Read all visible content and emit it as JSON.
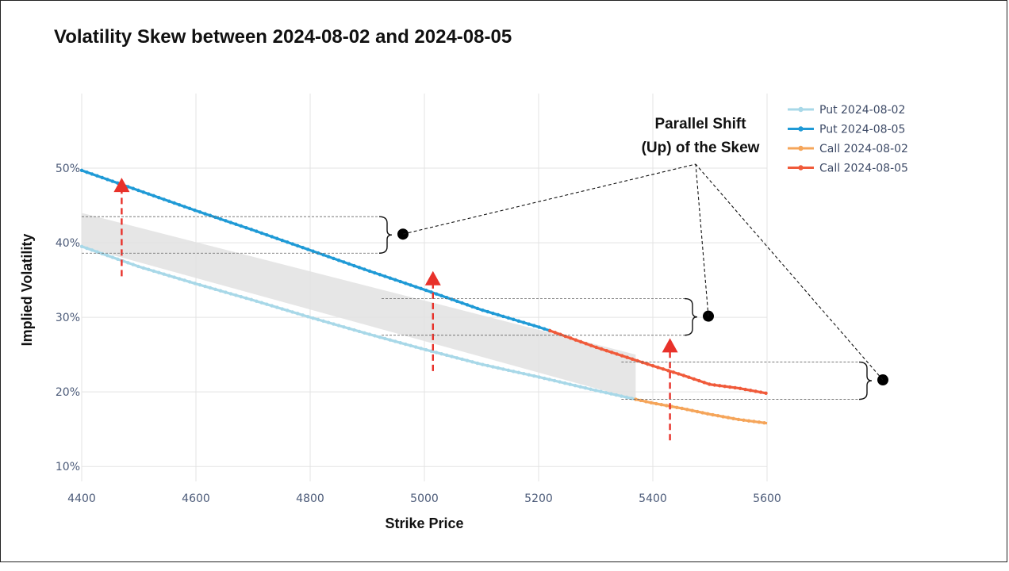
{
  "title": "Volatility Skew between 2024-08-02 and 2024-08-05",
  "chart_data": {
    "type": "line",
    "title": "Volatility Skew between 2024-08-02 and 2024-08-05",
    "xlabel": "Strike Price",
    "ylabel": "Implied Volatility",
    "xlim": [
      4400,
      5600
    ],
    "ylim": [
      8,
      60
    ],
    "x_ticks": [
      "4400",
      "4600",
      "4800",
      "5000",
      "5200",
      "5400",
      "5600"
    ],
    "y_ticks": [
      "10%",
      "20%",
      "30%",
      "40%",
      "50%"
    ],
    "grid": true,
    "legend_position": "top-right",
    "series": [
      {
        "name": "Put 2024-08-02",
        "color": "#a8d8e8",
        "x": [
          4400,
          4500,
          4600,
          4700,
          4800,
          4900,
          5000,
          5100,
          5200,
          5300,
          5370
        ],
        "y": [
          39.5,
          36.8,
          34.5,
          32.3,
          30.0,
          27.8,
          25.7,
          23.7,
          22.0,
          20.2,
          19.0
        ]
      },
      {
        "name": "Put 2024-08-05",
        "color": "#1f9ad6",
        "x": [
          4400,
          4500,
          4600,
          4700,
          4800,
          4900,
          5000,
          5100,
          5200,
          5220
        ],
        "y": [
          49.7,
          47.0,
          44.3,
          41.7,
          39.0,
          36.3,
          33.7,
          31.0,
          28.7,
          28.2
        ]
      },
      {
        "name": "Call 2024-08-02",
        "color": "#f5a55a",
        "x": [
          5370,
          5400,
          5450,
          5500,
          5550,
          5600
        ],
        "y": [
          19.0,
          18.5,
          17.8,
          17.0,
          16.3,
          15.8
        ]
      },
      {
        "name": "Call 2024-08-05",
        "color": "#f05a3a",
        "x": [
          5220,
          5300,
          5400,
          5450,
          5500,
          5550,
          5600
        ],
        "y": [
          28.2,
          26.0,
          23.5,
          22.3,
          21.0,
          20.5,
          19.8
        ]
      }
    ],
    "shaded_region": [
      {
        "x": 4400,
        "y_low": 39.5,
        "y_high": 44.0
      },
      {
        "x": 5370,
        "y_low": 19.0,
        "y_high": 25.0
      }
    ],
    "shift_arrows": [
      {
        "x": 4470,
        "y_from": 35.5,
        "y_to": 48.5
      },
      {
        "x": 5015,
        "y_from": 22.8,
        "y_to": 36.0
      },
      {
        "x": 5430,
        "y_from": 13.5,
        "y_to": 27.0
      }
    ],
    "annotations": [
      {
        "text_lines": [
          "Parallel Shift",
          "(Up) of the Skew"
        ],
        "brackets": [
          {
            "x_from": 4400,
            "y_top": 43.5,
            "y_bottom": 38.6
          },
          {
            "x_from": 4925,
            "y_top": 32.5,
            "y_bottom": 27.6
          },
          {
            "x_from": 5345,
            "y_top": 24.0,
            "y_bottom": 19.0
          }
        ]
      }
    ]
  }
}
